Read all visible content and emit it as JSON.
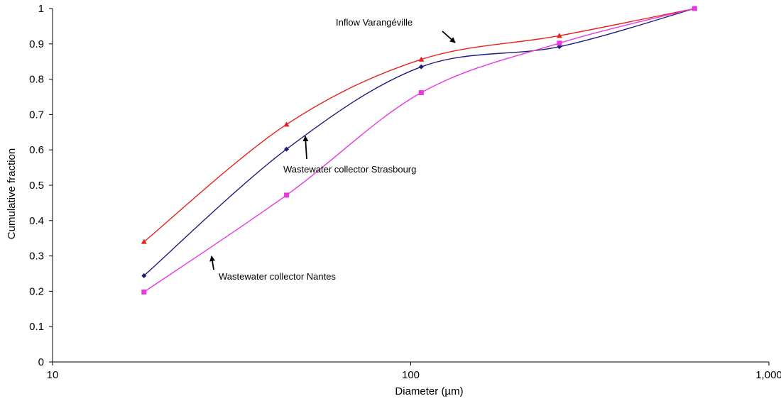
{
  "chart_data": {
    "type": "line",
    "title": "",
    "xlabel": "Diameter (µm)",
    "ylabel": "Cumulative fraction",
    "x_scale": "log",
    "xlim": [
      10,
      1000
    ],
    "ylim": [
      0,
      1
    ],
    "x_ticks": [
      10,
      100,
      1000
    ],
    "x_tick_labels": [
      "10",
      "100",
      "1,000"
    ],
    "y_ticks": [
      0,
      0.1,
      0.2,
      0.3,
      0.4,
      0.5,
      0.6,
      0.7,
      0.8,
      0.9,
      1
    ],
    "y_tick_labels": [
      "0",
      "0.1",
      "0.2",
      "0.3",
      "0.4",
      "0.5",
      "0.6",
      "0.7",
      "0.8",
      "0.9",
      "1"
    ],
    "grid": false,
    "legend": "none (series identified by arrow annotations)",
    "x": [
      18,
      45,
      107,
      260,
      620
    ],
    "series": [
      {
        "name": "Inflow Varangéville",
        "values": [
          0.34,
          0.672,
          0.856,
          0.923,
          1.0
        ],
        "color": "#e8201c",
        "marker": "triangle"
      },
      {
        "name": "Wastewater collector Strasbourg",
        "values": [
          0.244,
          0.602,
          0.835,
          0.892,
          1.0
        ],
        "color": "#1c1c7c",
        "marker": "diamond"
      },
      {
        "name": "Wastewater collector Nantes",
        "values": [
          0.198,
          0.472,
          0.762,
          0.902,
          1.0
        ],
        "color": "#e838e0",
        "marker": "square"
      }
    ],
    "annotations": [
      {
        "text": "Inflow Varangéville",
        "series": "Inflow Varangéville"
      },
      {
        "text": "Wastewater collector Strasbourg",
        "series": "Wastewater collector Strasbourg"
      },
      {
        "text": "Wastewater collector Nantes",
        "series": "Wastewater collector Nantes"
      }
    ]
  }
}
